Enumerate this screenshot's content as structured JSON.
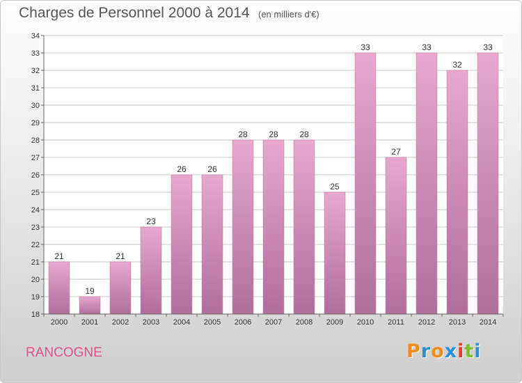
{
  "header": {
    "title": "Charges de Personnel 2000 à 2014",
    "subtitle": "(en milliers d'€)"
  },
  "footer": {
    "place": "RANCOGNE",
    "logo_text": "Proxiti",
    "logo_colors": [
      "#f08c1e",
      "#2b8fd6",
      "#f08c1e",
      "#2b8fd6",
      "#e23b2e",
      "#7cbf2a",
      "#2b8fd6"
    ]
  },
  "chart_data": {
    "type": "bar",
    "categories": [
      "2000",
      "2001",
      "2002",
      "2003",
      "2004",
      "2005",
      "2006",
      "2007",
      "2008",
      "2009",
      "2010",
      "2011",
      "2012",
      "2013",
      "2014"
    ],
    "values": [
      21,
      19,
      21,
      23,
      26,
      26,
      28,
      28,
      28,
      25,
      33,
      27,
      33,
      32,
      33
    ],
    "data_labels": [
      "21",
      "19",
      "21",
      "23",
      "26",
      "26",
      "28",
      "28",
      "28",
      "25",
      "33",
      "27",
      "33",
      "32",
      "33"
    ],
    "title": "Charges de Personnel 2000 à 2014",
    "xlabel": "",
    "ylabel": "",
    "ylim": [
      18,
      34
    ],
    "yticks": [
      "18",
      "19",
      "20",
      "21",
      "22",
      "23",
      "24",
      "25",
      "26",
      "27",
      "28",
      "29",
      "30",
      "31",
      "32",
      "33",
      "34"
    ],
    "grid": true,
    "bar_color_top": "#e6a8cd",
    "bar_color_bottom": "#b06e9a",
    "grid_color": "#c8c8c8"
  }
}
